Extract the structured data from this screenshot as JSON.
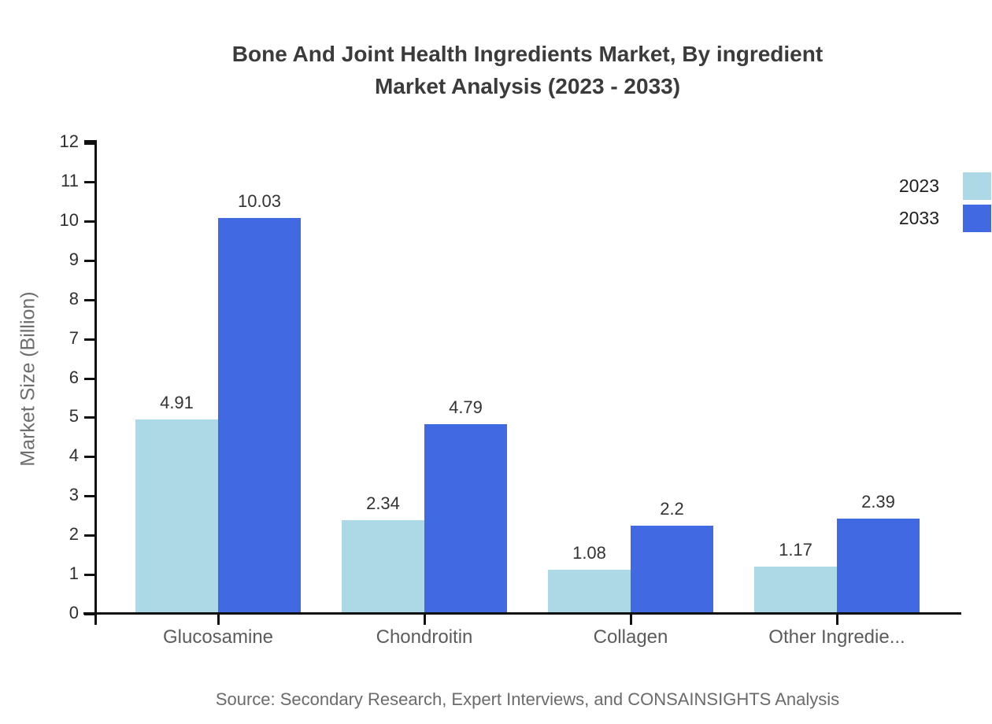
{
  "header": {
    "title": "Bone And Joint Health Ingredients Market, By ingredient\nMarket Analysis (2023 - 2033)"
  },
  "chart_data": {
    "type": "bar",
    "title": "Bone And Joint Health Ingredients Market, By ingredient Market Analysis (2023 - 2033)",
    "categories": [
      "Glucosamine",
      "Chondroitin",
      "Collagen",
      "Other Ingredie..."
    ],
    "series": [
      {
        "name": "2023",
        "color": "#ADD8E6",
        "values": [
          4.91,
          2.34,
          1.08,
          1.17
        ]
      },
      {
        "name": "2033",
        "color": "#4169E1",
        "values": [
          10.03,
          4.79,
          2.2,
          2.39
        ]
      }
    ],
    "xlabel": "",
    "ylabel": "Market Size (Billion)",
    "ylim": [
      0,
      12
    ],
    "ytick_step": 1,
    "yticks": [
      0,
      1,
      2,
      3,
      4,
      5,
      6,
      7,
      8,
      9,
      10,
      11,
      12
    ],
    "grid": false,
    "legend_position": "top-right",
    "bar_value_labels": true
  },
  "footer": {
    "source": "Source: Secondary Research, Expert Interviews, and CONSAINSIGHTS Analysis"
  },
  "colors": {
    "title_text": "#3b3b3b",
    "axis": "#111111",
    "tick_label": "#2f2f2f",
    "value_label": "#333333",
    "category_label": "#5c5c5c",
    "muted_text": "#6b6b6b",
    "series_2023": "#ADD8E6",
    "series_2033": "#4169E1"
  }
}
